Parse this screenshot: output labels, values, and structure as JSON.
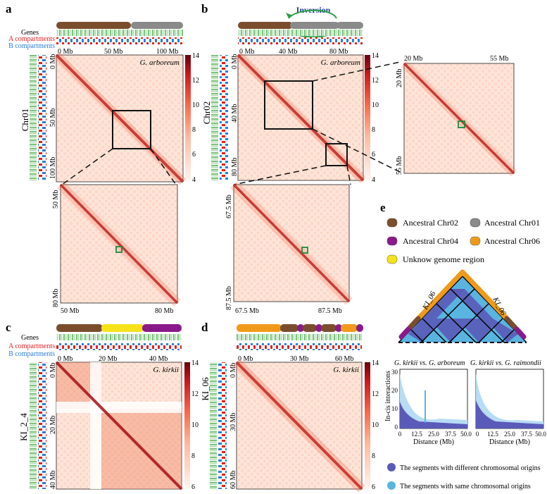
{
  "panels": {
    "a": {
      "letter": "a",
      "tracks": {
        "genes": "Genes",
        "a_comp": "A compartments",
        "b_comp": "B compartments"
      },
      "x_ticks": [
        "0 Mb",
        "50 Mb",
        "100 Mb"
      ],
      "y_ticks": [
        "0 Mb",
        "50 Mb",
        "100 Mb"
      ],
      "chrom": "Chr01",
      "species": "G. arboreum",
      "colorbar_ticks": [
        "14",
        "12",
        "10",
        "8",
        "6",
        "4"
      ],
      "zoom_x_ticks": [
        "50 Mb",
        "80 Mb"
      ],
      "zoom_y_ticks": [
        "50 Mb",
        "80 Mb"
      ]
    },
    "b": {
      "letter": "b",
      "inversion": "Inversion",
      "x_ticks": [
        "0 Mb",
        "40 Mb",
        "80 Mb"
      ],
      "y_ticks": [
        "0 Mb",
        "40 Mb",
        "80 Mb"
      ],
      "chrom": "Chr02",
      "species": "G. arboreum",
      "colorbar_ticks": [
        "14",
        "12",
        "10",
        "8",
        "6",
        "4"
      ],
      "zoom1_x_ticks": [
        "20 Mb",
        "55 Mb"
      ],
      "zoom1_y_ticks": [
        "20 Mb",
        "55 Mb"
      ],
      "zoom2_x_ticks": [
        "67.5 Mb",
        "87.5 Mb"
      ],
      "zoom2_y_ticks": [
        "67.5 Mb",
        "87.5 Mb"
      ]
    },
    "c": {
      "letter": "c",
      "tracks": {
        "genes": "Genes",
        "a_comp": "A compartments",
        "b_comp": "B compartments"
      },
      "x_ticks": [
        "0 Mb",
        "20 Mb",
        "40 Mb"
      ],
      "y_ticks": [
        "0 Mb",
        "20 Mb",
        "40 Mb"
      ],
      "chrom": "KI_2_4",
      "species": "G. kirkii",
      "colorbar_ticks": [
        "14",
        "12",
        "10",
        "8",
        "6"
      ]
    },
    "d": {
      "letter": "d",
      "x_ticks": [
        "0 Mb",
        "30 Mb",
        "60 Mb"
      ],
      "y_ticks": [
        "0 Mb",
        "30 Mb",
        "60 Mb"
      ],
      "chrom": "KI_06",
      "species": "G. kirkii",
      "colorbar_ticks": [
        "14",
        "12",
        "10",
        "8",
        "6"
      ]
    },
    "e": {
      "letter": "e",
      "legend": [
        {
          "label": "Ancestral Chr02",
          "color": "#7a4e2d"
        },
        {
          "label": "Ancestral Chr01",
          "color": "#8a8a8a"
        },
        {
          "label": "Ancestral Chr04",
          "color": "#8a1a8a"
        },
        {
          "label": "Ancestral Chr06",
          "color": "#f09a1a"
        },
        {
          "label": "Unknow genome region",
          "color": "#f5e21a"
        }
      ],
      "tri_label_left": "KI_06",
      "tri_label_right": "KI_06",
      "plot1_title": "G. kirkii vs. G. arboreum",
      "plot2_title": "G. kirkii vs. G. raimondii",
      "y_label": "In-cis interactions",
      "y_ticks": [
        "30",
        "20",
        "10",
        "0"
      ],
      "x_ticks": [
        "0",
        "12.5",
        "25.0",
        "37.5",
        "50.0"
      ],
      "x_label": "Distance (Mb)",
      "bottom_legend": [
        {
          "label": "The segments with different chromosomal origins",
          "color": "#5a5ab8"
        },
        {
          "label": "The segments with same chromosomal origins",
          "color": "#5ab4e0"
        }
      ]
    }
  }
}
